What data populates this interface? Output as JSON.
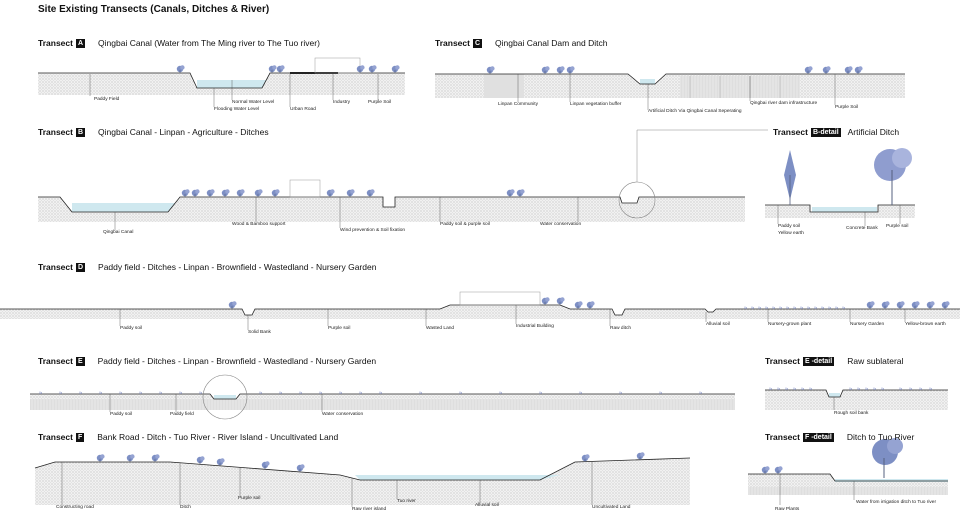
{
  "title": "Site Existing Transects (Canals, Ditches & River)",
  "transect_word": "Transect",
  "transects": {
    "A": {
      "key": "A",
      "desc": "Qingbai Canal (Water from The Ming river to The Tuo river)",
      "labels": [
        "Paddy Field",
        "Normal Water Level",
        "Flooding Water Level",
        "Urban Road",
        "Industry",
        "Purple Soil"
      ]
    },
    "C": {
      "key": "C",
      "desc": "Qingbai Canal Dam and Ditch",
      "labels": [
        "Linpan Community",
        "Linpan vegetation buffer",
        "Artificial Ditch Via Qingbai Canal Seperating",
        "Qingbai river dam infrastructure",
        "Purple Soil"
      ]
    },
    "B": {
      "key": "B",
      "desc": "Qingbai Canal - Linpan - Agriculture - Ditches",
      "labels": [
        "Qingbai Canal",
        "Wood & Bamboo support",
        "Wind prevention & Soil fixation",
        "Paddy soil & purple soil",
        "Water conservation"
      ]
    },
    "B_detail": {
      "key": "B-detail",
      "desc": "Artificial Ditch",
      "labels": [
        "Paddy soil",
        "Yellow earth",
        "Concrete Bank",
        "Purple soil"
      ]
    },
    "D": {
      "key": "D",
      "desc": "Paddy field - Ditches - Linpan - Brownfield - Wastedland - Nursery Garden",
      "labels": [
        "Paddy soil",
        "Solid Bank",
        "Purple soil",
        "Wasted Land",
        "Industrial Building",
        "Raw ditch",
        "Alluvial soil",
        "Nursery-grown plant",
        "Nursery Garden",
        "Yellow-brown earth"
      ]
    },
    "E": {
      "key": "E",
      "desc": "Paddy field - Ditches - Linpan - Brownfield - Wastedland - Nursery Garden",
      "labels": [
        "Paddy soil",
        "Paddy field",
        "Water conservation"
      ]
    },
    "E_detail": {
      "key": "E -detail",
      "desc": "Raw sublateral",
      "labels": [
        "Rough soil bank"
      ]
    },
    "F": {
      "key": "F",
      "desc": "Bank Road - Ditch - Tuo River - River Island - Uncultivated Land",
      "labels": [
        "Constructing road",
        "Ditch",
        "Purple soil",
        "Raw river island",
        "Tuo river",
        "Alluvial soil",
        "Uncultivated Land"
      ]
    },
    "F_detail": {
      "key": "F -detail",
      "desc": "Ditch to Tuo River",
      "labels": [
        "Raw Plants",
        "Water from irrigation ditch to Tuo river"
      ]
    }
  },
  "colors": {
    "water": "#cfe8ef",
    "ground": "#ececec",
    "line": "#222222",
    "tree": "#7d8fc4"
  }
}
